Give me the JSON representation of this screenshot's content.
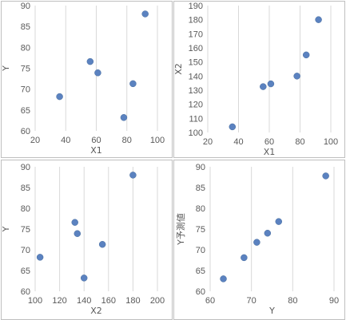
{
  "colors": {
    "point": "#5b82c0",
    "grid": "#d9d9d9",
    "text": "#595959",
    "border": "#bfbfbf"
  },
  "chart_data": [
    {
      "type": "scatter",
      "xlabel": "X1",
      "ylabel": "Y",
      "xlim": [
        20,
        100
      ],
      "ylim": [
        60,
        90
      ],
      "xticks": [
        20,
        40,
        60,
        80,
        100
      ],
      "yticks": [
        60,
        65,
        70,
        75,
        80,
        85,
        90
      ],
      "grid": "x-major",
      "points": [
        {
          "x": 36,
          "y": 68.2
        },
        {
          "x": 56,
          "y": 76.6
        },
        {
          "x": 61,
          "y": 73.9
        },
        {
          "x": 78,
          "y": 63.2
        },
        {
          "x": 84,
          "y": 71.3
        },
        {
          "x": 92,
          "y": 88.0
        }
      ]
    },
    {
      "type": "scatter",
      "xlabel": "X1",
      "ylabel": "X2",
      "xlim": [
        20,
        100
      ],
      "ylim": [
        100,
        190
      ],
      "xticks": [
        20,
        40,
        60,
        80,
        100
      ],
      "yticks": [
        100,
        110,
        120,
        130,
        140,
        150,
        160,
        170,
        180,
        190
      ],
      "grid": "x-major",
      "points": [
        {
          "x": 36,
          "y": 104
        },
        {
          "x": 56,
          "y": 132.5
        },
        {
          "x": 61,
          "y": 134.5
        },
        {
          "x": 78,
          "y": 140
        },
        {
          "x": 84,
          "y": 155
        },
        {
          "x": 92,
          "y": 180
        }
      ]
    },
    {
      "type": "scatter",
      "xlabel": "X2",
      "ylabel": "Y",
      "xlim": [
        100,
        200
      ],
      "ylim": [
        60,
        90
      ],
      "xticks": [
        100,
        120,
        140,
        160,
        180,
        200
      ],
      "yticks": [
        60,
        65,
        70,
        75,
        80,
        85,
        90
      ],
      "grid": "x-major",
      "points": [
        {
          "x": 104,
          "y": 68.2
        },
        {
          "x": 132.5,
          "y": 76.6
        },
        {
          "x": 134.5,
          "y": 73.9
        },
        {
          "x": 140,
          "y": 63.2
        },
        {
          "x": 155,
          "y": 71.3
        },
        {
          "x": 180,
          "y": 88.0
        }
      ]
    },
    {
      "type": "scatter",
      "xlabel": "Y",
      "ylabel": "Y予測値",
      "xlim": [
        60,
        90
      ],
      "ylim": [
        60,
        90
      ],
      "xticks": [
        60,
        70,
        80,
        90
      ],
      "yticks": [
        60,
        65,
        70,
        75,
        80,
        85,
        90
      ],
      "grid": "x-major",
      "points": [
        {
          "x": 63.2,
          "y": 63.0
        },
        {
          "x": 68.2,
          "y": 68.1
        },
        {
          "x": 71.3,
          "y": 71.8
        },
        {
          "x": 73.9,
          "y": 74.0
        },
        {
          "x": 76.6,
          "y": 76.8
        },
        {
          "x": 88.0,
          "y": 87.8
        }
      ]
    }
  ]
}
